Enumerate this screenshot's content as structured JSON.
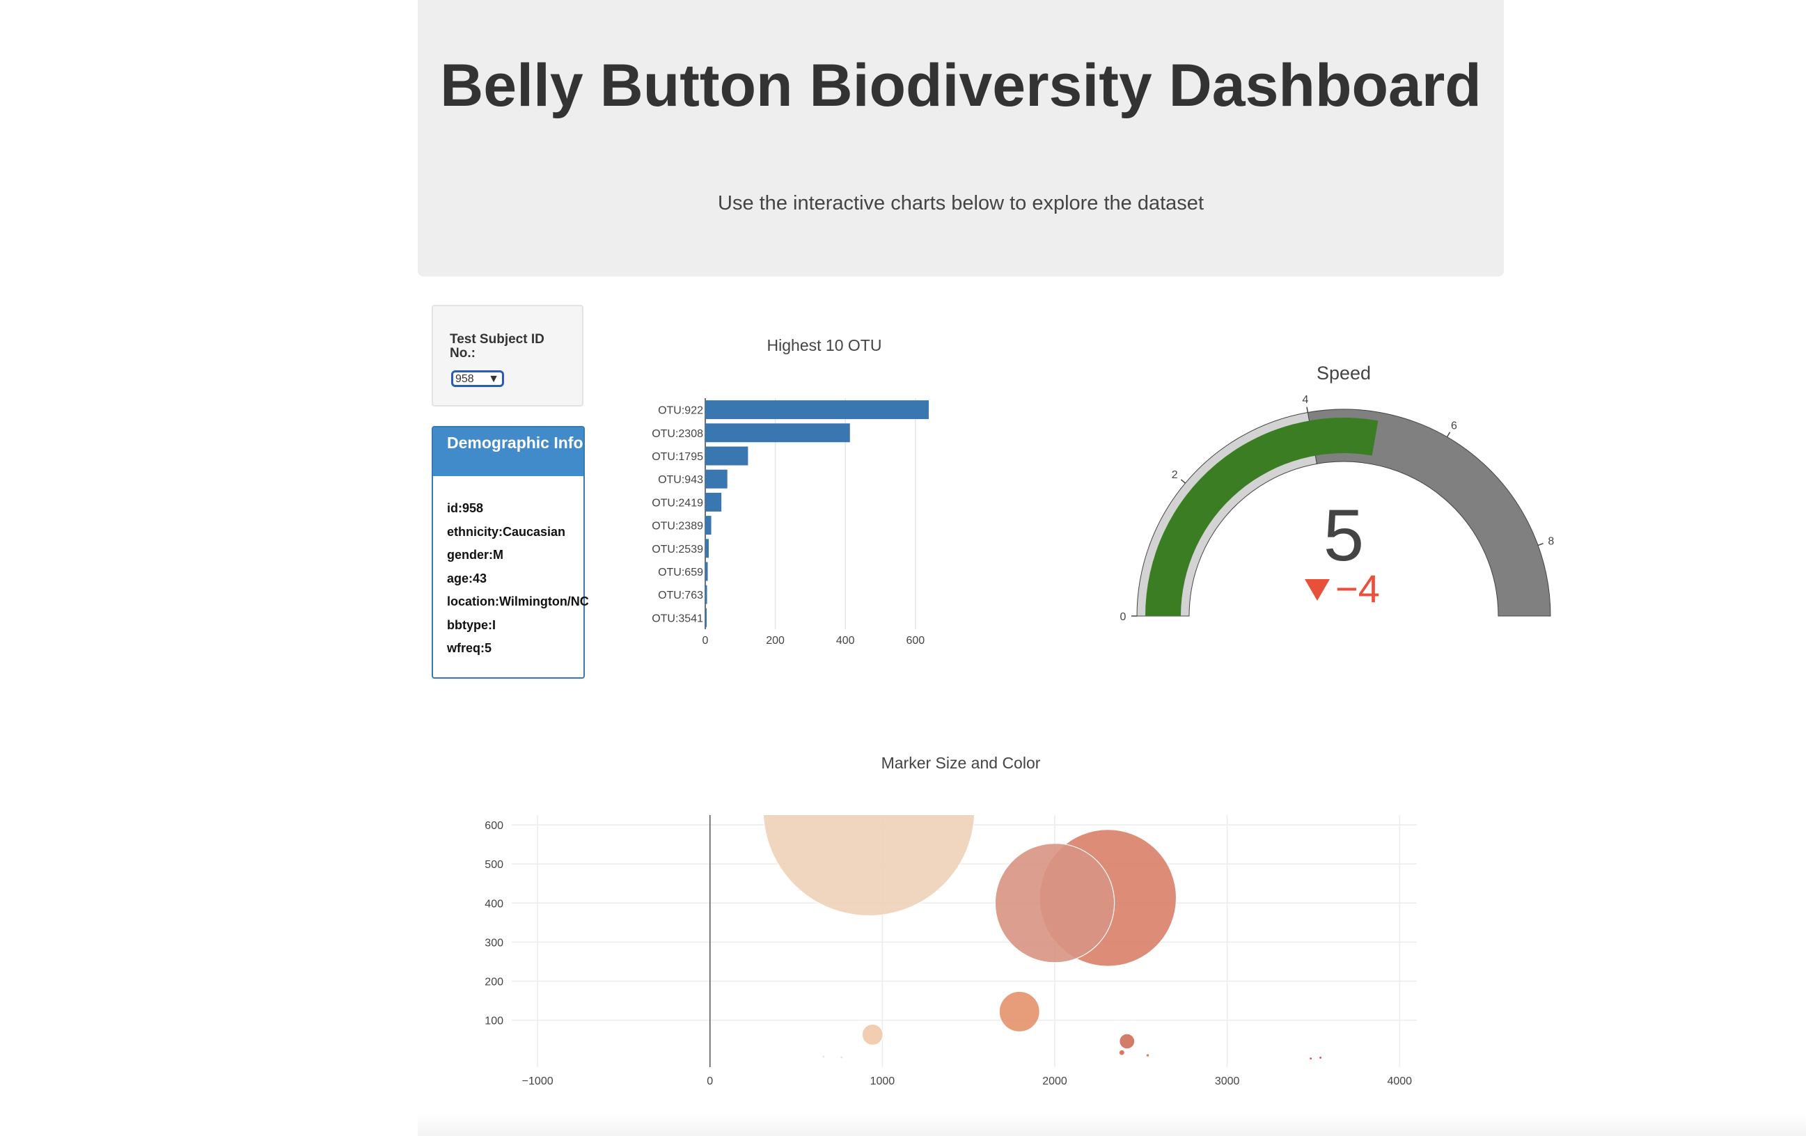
{
  "header": {
    "title": "Belly Button Biodiversity Dashboard",
    "subtitle": "Use the interactive charts below to explore the dataset"
  },
  "selector": {
    "label": "Test Subject ID No.:",
    "selected": "958"
  },
  "demographics": {
    "title": "Demographic Info",
    "items": [
      "id:958",
      "ethnicity:Caucasian",
      "gender:M",
      "age:43",
      "location:Wilmington/NC",
      "bbtype:I",
      "wfreq:5"
    ]
  },
  "colors": {
    "bar": "#3a76b0",
    "gauge_bar": "#3a7d23",
    "gauge_step_light": "#d3d3d3",
    "gauge_step_dark": "#808080",
    "delta": "#e8503a"
  },
  "chart_data": [
    {
      "type": "bar",
      "orientation": "horizontal",
      "title": "Highest 10 OTU",
      "categories": [
        "OTU:922",
        "OTU:2308",
        "OTU:1795",
        "OTU:943",
        "OTU:2419",
        "OTU:2389",
        "OTU:2539",
        "OTU:659",
        "OTU:763",
        "OTU:3541"
      ],
      "values": [
        638,
        413,
        122,
        63,
        46,
        17,
        10,
        7,
        5,
        4
      ],
      "xlim": [
        0,
        650
      ],
      "xticks": [
        0,
        200,
        400,
        600
      ],
      "grid": true
    },
    {
      "type": "gauge",
      "title": "Speed",
      "value": 5,
      "delta": "−4",
      "range": [
        0,
        9
      ],
      "ticks": [
        0,
        2,
        4,
        6,
        8
      ],
      "steps": [
        {
          "range": [
            0,
            4
          ],
          "color": "lightgray"
        },
        {
          "range": [
            4,
            9
          ],
          "color": "gray"
        }
      ]
    },
    {
      "type": "scatter",
      "mode": "markers",
      "title": "Marker Size and Color",
      "xlim": [
        -1000,
        4000
      ],
      "ylim": [
        0,
        650
      ],
      "xticks": [
        -1000,
        0,
        1000,
        2000,
        3000,
        4000
      ],
      "yticks": [
        100,
        200,
        300,
        400,
        500,
        600
      ],
      "grid": true,
      "points": [
        {
          "x": 922,
          "y": 638,
          "r": 638,
          "color": "#f0d1b8"
        },
        {
          "x": 2308,
          "y": 413,
          "r": 413,
          "color": "#d97f68"
        },
        {
          "x": 2000,
          "y": 400,
          "r": 360,
          "color": "#d89383"
        },
        {
          "x": 1795,
          "y": 122,
          "r": 122,
          "color": "#e4926c"
        },
        {
          "x": 943,
          "y": 63,
          "r": 63,
          "color": "#f0c8a8"
        },
        {
          "x": 2419,
          "y": 46,
          "r": 46,
          "color": "#d06e58"
        },
        {
          "x": 2389,
          "y": 17,
          "r": 17,
          "color": "#cf6a55"
        },
        {
          "x": 2539,
          "y": 10,
          "r": 10,
          "color": "#d4725d"
        },
        {
          "x": 659,
          "y": 7,
          "r": 7,
          "color": "#f3dcc8"
        },
        {
          "x": 763,
          "y": 5,
          "r": 5,
          "color": "#f2d8c2"
        },
        {
          "x": 3541,
          "y": 4,
          "r": 4,
          "color": "#e03030"
        },
        {
          "x": 3485,
          "y": 2,
          "r": 3,
          "color": "#e03030"
        }
      ]
    }
  ]
}
